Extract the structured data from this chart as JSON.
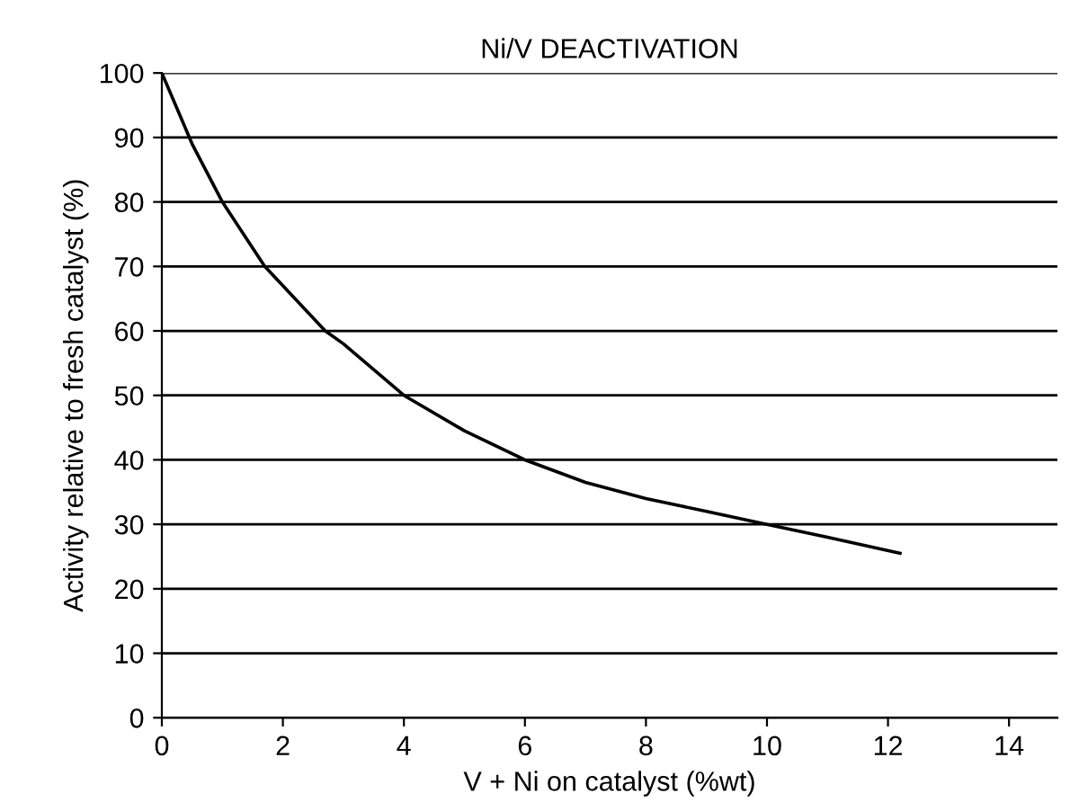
{
  "chart_data": {
    "type": "line",
    "title": "Ni/V DEACTIVATION",
    "xlabel": "V + Ni on catalyst (%wt)",
    "ylabel": "Activity relative to fresh catalyst (%)",
    "x": [
      0,
      0.5,
      1,
      1.7,
      2.7,
      3,
      4,
      5,
      6,
      7,
      8,
      9,
      9.5,
      10,
      11,
      12.2
    ],
    "series": [
      {
        "color": "#000000",
        "values": [
          100,
          89,
          80,
          70,
          60,
          58,
          50,
          44.5,
          40,
          36.5,
          34,
          32,
          31,
          30,
          28,
          25.5
        ]
      }
    ],
    "xlim": [
      0,
      14.8
    ],
    "xticks": [
      0,
      2,
      4,
      6,
      8,
      10,
      12,
      14
    ],
    "ylim": [
      0,
      100
    ],
    "yticks": [
      0,
      10,
      20,
      30,
      40,
      50,
      60,
      70,
      80,
      90,
      100
    ],
    "grid": "y",
    "marker": "none",
    "line_style": "solid"
  }
}
